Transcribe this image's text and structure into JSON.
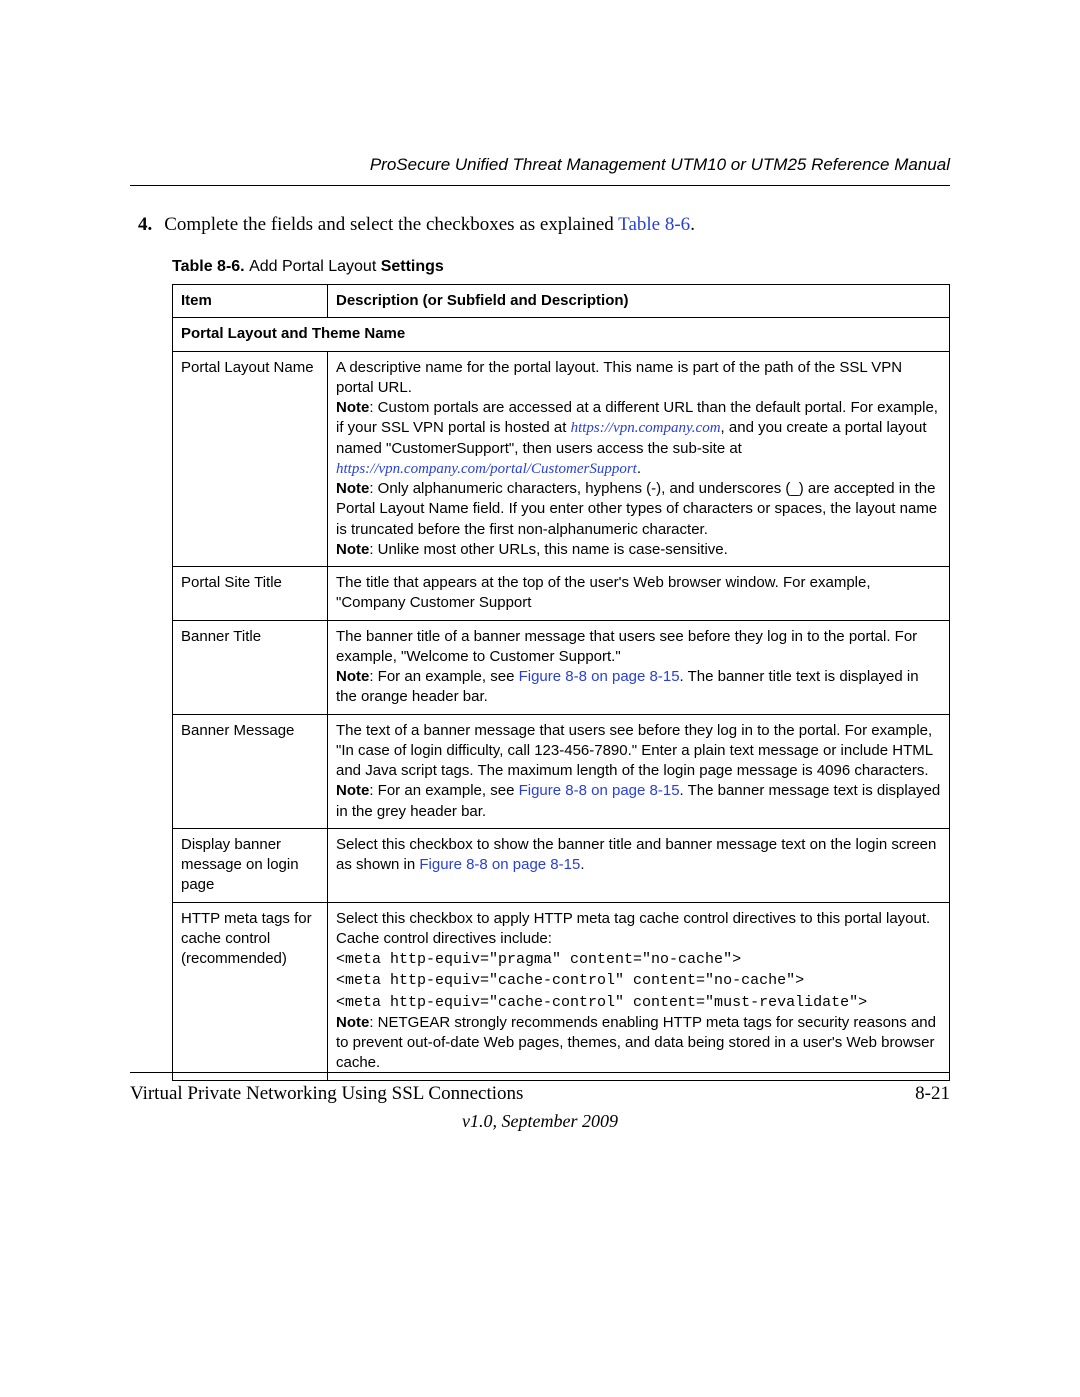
{
  "header": {
    "title": "ProSecure Unified Threat Management UTM10 or UTM25 Reference Manual"
  },
  "step": {
    "number": "4.",
    "text_before_link": "Complete the fields and select the checkboxes as explained ",
    "link": "Table 8-6",
    "text_after_link": "."
  },
  "table_caption": {
    "prefix": "Table 8-6. ",
    "middle": "Add Portal Layout ",
    "suffix": "Settings"
  },
  "table": {
    "header_item": "Item",
    "header_desc": "Description (or Subfield and Description)",
    "section": "Portal Layout and Theme Name",
    "rows": {
      "r1": {
        "item": "Portal Layout Name",
        "p1": "A descriptive name for the portal layout. This name is part of the path of the SSL VPN portal URL.",
        "note1_label": "Note",
        "note1_text": ": Custom portals are accessed at a different URL than the default portal. For example, if your SSL VPN portal is hosted at ",
        "url1": "https://vpn.company.com",
        "note1_text2": ", and you create a portal layout named \"CustomerSupport\", then users access the sub-site at ",
        "url2": "https://vpn.company.com/portal/CustomerSupport",
        "note1_text3": ".",
        "note2_label": "Note",
        "note2_text": ": Only alphanumeric characters, hyphens (-), and underscores (_) are accepted in the Portal Layout Name field. If you enter other types of characters or spaces, the layout name is truncated before the first non-alphanumeric character.",
        "note3_label": "Note",
        "note3_text": ": Unlike most other URLs, this name is case-sensitive."
      },
      "r2": {
        "item": "Portal Site Title",
        "desc": "The title that appears at the top of the user's Web browser window. For example, \"Company Customer Support"
      },
      "r3": {
        "item": "Banner Title",
        "p1": "The banner title of a banner message that users see before they log in to the portal. For example, \"Welcome to Customer Support.\"",
        "note_label": "Note",
        "note_text1": ": For an example, see ",
        "link": "Figure 8-8 on page 8-15",
        "note_text2": ". The banner title text is displayed in the orange header bar."
      },
      "r4": {
        "item": "Banner Message",
        "p1": "The text of a banner message that users see before they log in to the portal. For example, \"In case of login difficulty, call 123-456-7890.\" Enter a plain text message or include HTML and Java script tags. The maximum length of the login page message is 4096 characters.",
        "note_label": "Note",
        "note_text1": ": For an example, see ",
        "link": "Figure 8-8 on page 8-15",
        "note_text2": ". The banner message text is displayed in the grey header bar."
      },
      "r5": {
        "item": "Display banner message on login page",
        "text1": "Select this checkbox to show the banner title and banner message text on the login screen as shown in ",
        "link": "Figure 8-8 on page 8-15",
        "text2": "."
      },
      "r6": {
        "item": "HTTP meta tags for cache control (recommended)",
        "p1": "Select this checkbox to apply HTTP meta tag cache control directives to this portal layout. Cache control directives include:",
        "code1": "<meta http-equiv=\"pragma\" content=\"no-cache\">",
        "code2": "<meta http-equiv=\"cache-control\" content=\"no-cache\">",
        "code3": "<meta http-equiv=\"cache-control\" content=\"must-revalidate\">",
        "note_label": "Note",
        "note_text": ": NETGEAR strongly recommends enabling HTTP meta tags for security reasons and to prevent out-of-date Web pages, themes, and data being stored in a user's Web browser cache."
      }
    }
  },
  "footer": {
    "left": "Virtual Private Networking Using SSL Connections",
    "right": "8-21",
    "version": "v1.0, September 2009"
  }
}
